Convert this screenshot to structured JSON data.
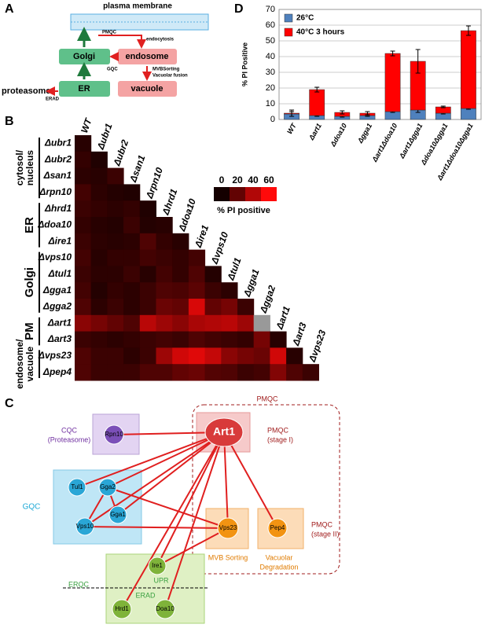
{
  "panel_a": {
    "label": "A",
    "nodes": [
      "plasma membrane",
      "Golgi",
      "endosome",
      "ER",
      "vacuole",
      "proteasome"
    ],
    "edges": [
      "PMQC",
      "endocytosis",
      "GQC",
      "MVBSorting",
      "Vacuolar fusion",
      "ERAD"
    ]
  },
  "panel_b": {
    "label": "B",
    "columns": [
      "WT",
      "Δubr1",
      "Δubr2",
      "Δsan1",
      "Δrpn10",
      "Δhrd1",
      "Δdoa10",
      "Δire1",
      "Δvps10",
      "Δtul1",
      "Δgga1",
      "Δgga2",
      "Δart1",
      "Δart3",
      "Δvps23"
    ],
    "rows": [
      "Δubr1",
      "Δubr2",
      "Δsan1",
      "Δrpn10",
      "Δhrd1",
      "Δdoa10",
      "Δire1",
      "Δvps10",
      "Δtul1",
      "Δgga1",
      "Δgga2",
      "Δart1",
      "Δart3",
      "Δvps23",
      "Δpep4"
    ],
    "groups": [
      [
        "cytosol/",
        "nucleus"
      ],
      [
        "ER"
      ],
      [
        "Golgi"
      ],
      [
        "PM"
      ],
      [
        "endosome/",
        "vacuole"
      ]
    ],
    "values": [
      [
        5
      ],
      [
        8,
        3
      ],
      [
        6,
        5,
        10
      ],
      [
        12,
        6,
        4,
        3
      ],
      [
        10,
        8,
        6,
        8,
        3
      ],
      [
        8,
        5,
        4,
        10,
        4,
        5
      ],
      [
        10,
        6,
        5,
        6,
        15,
        8,
        5
      ],
      [
        12,
        5,
        8,
        8,
        12,
        10,
        8,
        12
      ],
      [
        10,
        6,
        6,
        10,
        5,
        12,
        8,
        15,
        4
      ],
      [
        12,
        4,
        8,
        6,
        10,
        15,
        14,
        18,
        10,
        6
      ],
      [
        15,
        6,
        10,
        6,
        10,
        22,
        20,
        50,
        20,
        25,
        10
      ],
      [
        30,
        25,
        20,
        15,
        42,
        35,
        30,
        38,
        40,
        42,
        35,
        null
      ],
      [
        10,
        8,
        6,
        8,
        10,
        12,
        10,
        15,
        12,
        10,
        8,
        25,
        5
      ],
      [
        15,
        10,
        10,
        6,
        10,
        35,
        48,
        52,
        45,
        30,
        25,
        22,
        48,
        5
      ],
      [
        15,
        10,
        10,
        10,
        15,
        15,
        20,
        22,
        16,
        15,
        10,
        12,
        28,
        15,
        10
      ]
    ],
    "color_scale": {
      "ticks": [
        0,
        20,
        40,
        60
      ],
      "label": "% PI positive"
    }
  },
  "panel_c": {
    "label": "C",
    "nodes": [
      "Rpn10",
      "Art1",
      "Tul1",
      "Gga2",
      "Gga1",
      "Vps10",
      "Vps23",
      "Pep4",
      "Ire1",
      "Hrd1",
      "Doa10"
    ],
    "cqc": [
      "CQC",
      "(Proteasome)"
    ],
    "gqc": "GQC",
    "pmqc": "PMQC",
    "pmqc_stage1": [
      "PMQC",
      "(stage I)"
    ],
    "pmqc_stage2": [
      "PMQC",
      "(stage II)"
    ],
    "mvb": "MVB Sorting",
    "vacuolar": [
      "Vacuolar",
      "Degradation"
    ],
    "upr": "UPR",
    "erqc": "ERQC",
    "erad": "ERAD"
  },
  "chart_data": {
    "type": "bar",
    "stacked": true,
    "panel_label": "D",
    "ylabel": "% PI Positive",
    "categories": [
      "WT",
      "Δart1",
      "Δdoa10",
      "Δgga1",
      "Δart1Δdoa10",
      "Δart1Δgga1",
      "Δdoa10Δgga1",
      "Δart1Δdoa10Δgga1"
    ],
    "series": [
      {
        "name": "26°C",
        "color": "#4f81bd",
        "values": [
          3.5,
          2.5,
          2,
          2.5,
          5,
          6,
          4,
          7
        ],
        "errors": [
          1.5,
          0.5,
          0.5,
          0.5,
          0.5,
          1.5,
          0.5,
          0.5
        ]
      },
      {
        "name": "40°C 3 hours",
        "color": "#ff0000",
        "values": [
          0.5,
          16.5,
          2.5,
          1.5,
          37,
          31,
          4,
          49.5
        ],
        "errors": [
          2,
          1.5,
          1,
          1,
          1.5,
          7.5,
          0.5,
          3
        ]
      }
    ],
    "ylim": [
      0,
      70
    ],
    "yticks": [
      0,
      10,
      20,
      30,
      40,
      50,
      60,
      70
    ],
    "grid": true,
    "legend": "top-left"
  }
}
